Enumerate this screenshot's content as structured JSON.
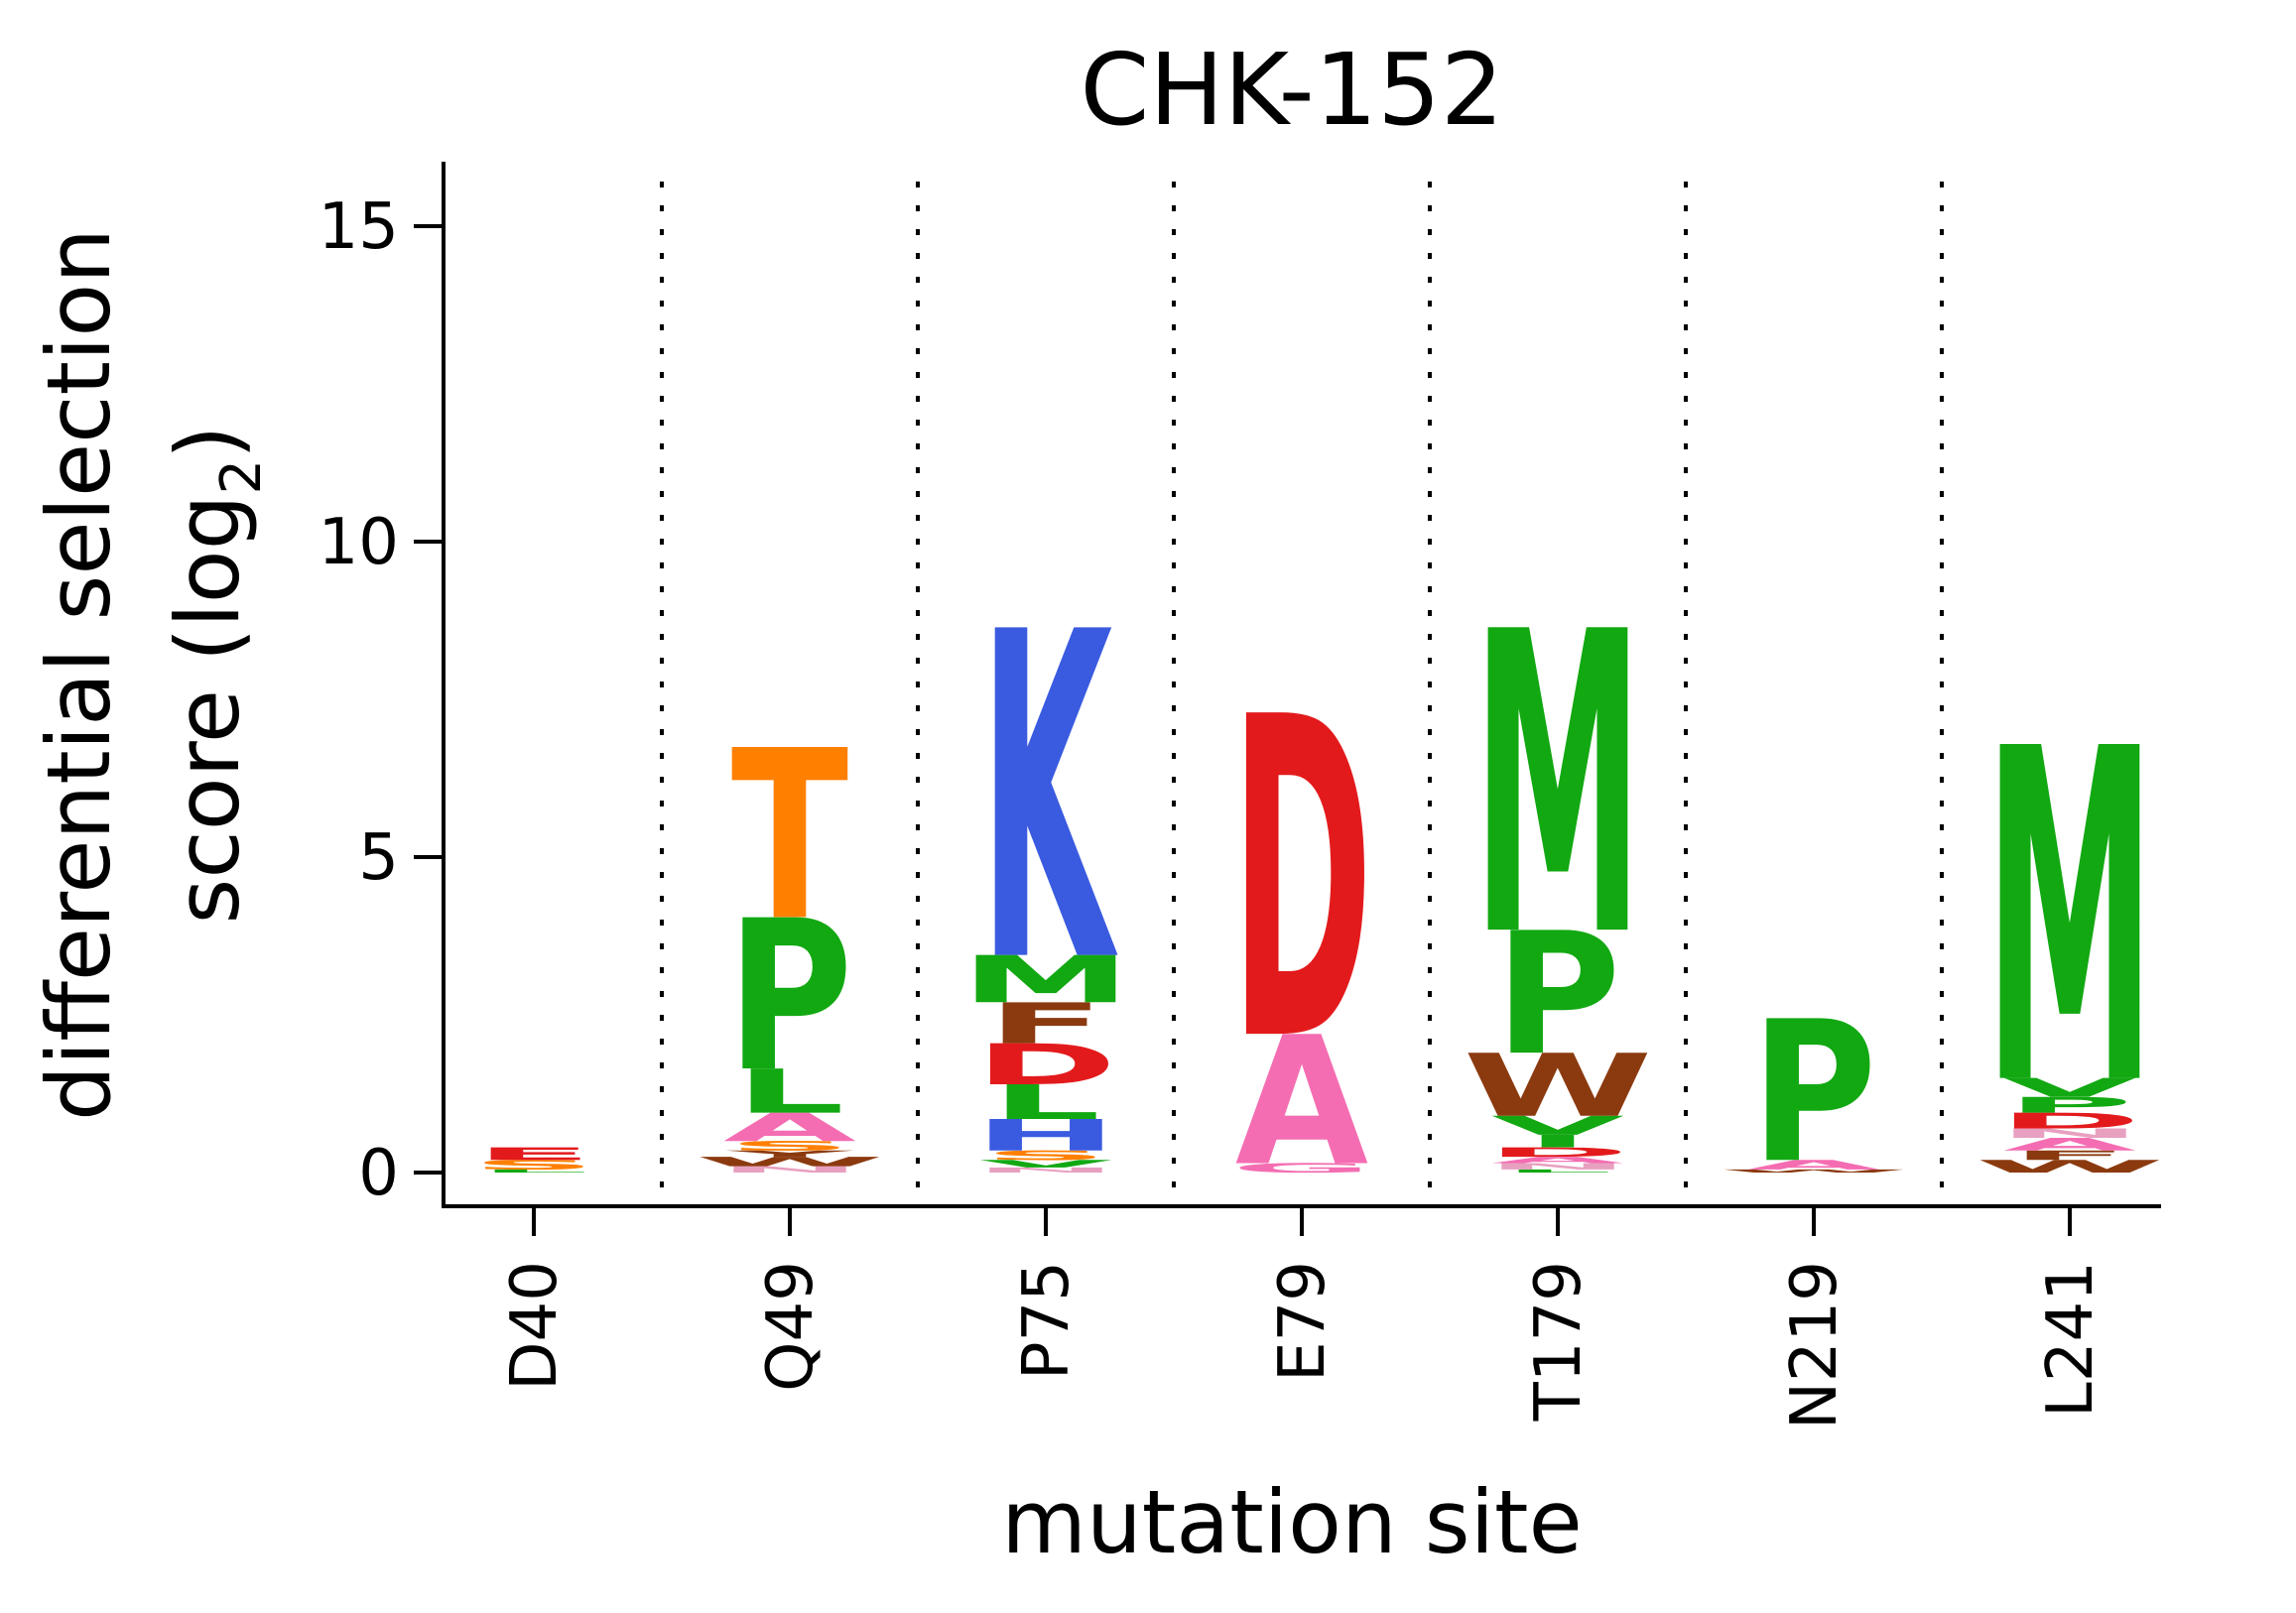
{
  "chart_data": {
    "type": "sequence-logo",
    "title": "CHK-152",
    "xlabel": "mutation site",
    "ylabel_line1": "differential selection",
    "ylabel_line2_prefix": "score (log",
    "ylabel_line2_sub": "2",
    "ylabel_line2_suffix": ")",
    "ylim": [
      -0.5,
      16
    ],
    "yticks": [
      {
        "value": 0,
        "label": "0"
      },
      {
        "value": 5,
        "label": "5"
      },
      {
        "value": 10,
        "label": "10"
      },
      {
        "value": 15,
        "label": "15"
      }
    ],
    "grid": false,
    "separators": "dotted vertical lines between sites",
    "colors": {
      "D": "#e31a1c",
      "E": "#e31a1c",
      "K": "#3a5be0",
      "R": "#3a5be0",
      "H": "#3a5be0",
      "M": "#12a812",
      "P": "#12a812",
      "L": "#12a812",
      "V": "#12a812",
      "I": "#12a812",
      "F": "#8b3a0f",
      "W": "#8b3a0f",
      "Y": "#8b3a0f",
      "A": "#f46db2",
      "G": "#f46db2",
      "T": "#ff7f00",
      "S": "#ff7f00",
      "C": "#12a812",
      "N": "#e8a0c0",
      "Q": "#e8a0c0"
    },
    "sites": [
      {
        "label": "D40",
        "letters": [
          {
            "aa": "L",
            "value": 0.05
          },
          {
            "aa": "S",
            "value": 0.15
          },
          {
            "aa": "E",
            "value": 0.2
          }
        ]
      },
      {
        "label": "Q49",
        "letters": [
          {
            "aa": "N",
            "value": 0.1
          },
          {
            "aa": "W",
            "value": 0.15
          },
          {
            "aa": "Y",
            "value": 0.1
          },
          {
            "aa": "S",
            "value": 0.15
          },
          {
            "aa": "A",
            "value": 0.45
          },
          {
            "aa": "L",
            "value": 0.7
          },
          {
            "aa": "P",
            "value": 2.4
          },
          {
            "aa": "T",
            "value": 2.7
          }
        ]
      },
      {
        "label": "P75",
        "letters": [
          {
            "aa": "N",
            "value": 0.08
          },
          {
            "aa": "V",
            "value": 0.12
          },
          {
            "aa": "S",
            "value": 0.15
          },
          {
            "aa": "H",
            "value": 0.5
          },
          {
            "aa": "L",
            "value": 0.55
          },
          {
            "aa": "D",
            "value": 0.65
          },
          {
            "aa": "F",
            "value": 0.65
          },
          {
            "aa": "M",
            "value": 0.75
          },
          {
            "aa": "K",
            "value": 5.2
          }
        ]
      },
      {
        "label": "E79",
        "letters": [
          {
            "aa": "G",
            "value": 0.15
          },
          {
            "aa": "A",
            "value": 2.05
          },
          {
            "aa": "D",
            "value": 5.1
          }
        ]
      },
      {
        "label": "T179",
        "letters": [
          {
            "aa": "L",
            "value": 0.05
          },
          {
            "aa": "N",
            "value": 0.1
          },
          {
            "aa": "A",
            "value": 0.1
          },
          {
            "aa": "D",
            "value": 0.15
          },
          {
            "aa": "I",
            "value": 0.2
          },
          {
            "aa": "V",
            "value": 0.3
          },
          {
            "aa": "W",
            "value": 1.0
          },
          {
            "aa": "P",
            "value": 1.95
          },
          {
            "aa": "M",
            "value": 4.8
          }
        ]
      },
      {
        "label": "N219",
        "letters": [
          {
            "aa": "W",
            "value": 0.05
          },
          {
            "aa": "A",
            "value": 0.15
          },
          {
            "aa": "P",
            "value": 2.25
          }
        ]
      },
      {
        "label": "L241",
        "letters": [
          {
            "aa": "W",
            "value": 0.2
          },
          {
            "aa": "F",
            "value": 0.15
          },
          {
            "aa": "A",
            "value": 0.2
          },
          {
            "aa": "N",
            "value": 0.15
          },
          {
            "aa": "D",
            "value": 0.25
          },
          {
            "aa": "P",
            "value": 0.25
          },
          {
            "aa": "V",
            "value": 0.3
          },
          {
            "aa": "M",
            "value": 5.3
          }
        ]
      }
    ]
  }
}
